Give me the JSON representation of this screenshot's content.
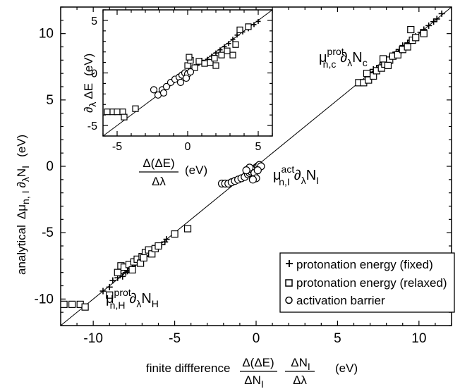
{
  "chart_data": [
    {
      "type": "scatter",
      "xlabel": {
        "prefix": "finite diffference",
        "frac1_num": "Δ(ΔE)",
        "frac1_den": "ΔN",
        "frac1_den_sub": "I",
        "frac2_num": "ΔN",
        "frac2_num_sub": "I",
        "frac2_den": "Δλ",
        "unit": "(eV)"
      },
      "ylabel": {
        "prefix": "analytical",
        "main": "Δμ",
        "sub": "n, I",
        "part2": "∂",
        "sub2": "λ",
        "part3": "N",
        "sub3": "I",
        "unit": "(eV)"
      },
      "xlim": [
        -12,
        12
      ],
      "ylim": [
        -12,
        12
      ],
      "xticks": [
        "-10",
        "-5",
        "0",
        "5",
        "10"
      ],
      "yticks": [
        "-10",
        "-5",
        "0",
        "5",
        "10"
      ],
      "annotations": {
        "top_right": {
          "mu": "μ",
          "sup": "prot",
          "sub": "n,c",
          "d": "∂",
          "dsub": "λ",
          "N": "N",
          "Nsub": "c"
        },
        "middle": {
          "mu": "μ",
          "sup": "act",
          "sub": "n,I",
          "d": "∂",
          "dsub": "λ",
          "N": "N",
          "Nsub": "I"
        },
        "bottom_left": {
          "mu": "μ",
          "sup": "prot",
          "sub": "n,H",
          "d": "∂",
          "dsub": "λ",
          "N": "N",
          "Nsub": "H"
        }
      },
      "legend": {
        "placement": "bottom-right",
        "items": [
          "protonation energy (fixed)",
          "protonation energy (relaxed)",
          "activation barrier"
        ]
      },
      "series": [
        {
          "name": "protonation energy (fixed)",
          "marker": "plus",
          "points": [
            [
              -9.4,
              -9.4
            ],
            [
              -9.0,
              -9.1
            ],
            [
              -8.8,
              -8.6
            ],
            [
              -8.5,
              -8.4
            ],
            [
              -8.2,
              -8.3
            ],
            [
              -8.0,
              -8.0
            ],
            [
              -7.8,
              -7.7
            ],
            [
              -7.6,
              -7.6
            ],
            [
              -7.4,
              -7.3
            ],
            [
              -7.2,
              -7.2
            ],
            [
              -7.0,
              -7.0
            ],
            [
              -6.8,
              -6.8
            ],
            [
              -6.6,
              -6.6
            ],
            [
              -6.4,
              -6.4
            ],
            [
              -6.2,
              -6.2
            ],
            [
              -6.0,
              -6.0
            ],
            [
              -5.8,
              -5.9
            ],
            [
              -5.6,
              -5.7
            ],
            [
              -5.5,
              -5.5
            ],
            [
              -8.3,
              -8.1
            ],
            [
              -7.9,
              -7.9
            ],
            [
              -6.9,
              -6.7
            ],
            [
              -6.5,
              -6.3
            ],
            [
              7.2,
              7.3
            ],
            [
              7.4,
              7.4
            ],
            [
              7.6,
              7.6
            ],
            [
              7.8,
              7.8
            ],
            [
              8.0,
              8.1
            ],
            [
              8.2,
              8.2
            ],
            [
              8.4,
              8.4
            ],
            [
              8.6,
              8.6
            ],
            [
              8.8,
              8.8
            ],
            [
              9.0,
              9.1
            ],
            [
              9.3,
              9.3
            ],
            [
              9.5,
              9.5
            ],
            [
              9.8,
              9.8
            ],
            [
              10.1,
              10.1
            ],
            [
              10.3,
              10.3
            ],
            [
              10.6,
              10.6
            ],
            [
              10.9,
              10.9
            ],
            [
              11.1,
              11.1
            ],
            [
              11.4,
              11.5
            ],
            [
              7.0,
              7.1
            ],
            [
              8.9,
              8.7
            ]
          ]
        },
        {
          "name": "protonation energy (relaxed)",
          "marker": "square",
          "points": [
            [
              -11.8,
              -10.4
            ],
            [
              -11.3,
              -10.4
            ],
            [
              -10.8,
              -10.4
            ],
            [
              -10.5,
              -10.6
            ],
            [
              -9.0,
              -9.7
            ],
            [
              -8.5,
              -8.0
            ],
            [
              -8.3,
              -7.5
            ],
            [
              -8.1,
              -7.6
            ],
            [
              -7.8,
              -7.4
            ],
            [
              -7.5,
              -7.2
            ],
            [
              -7.3,
              -7.0
            ],
            [
              -7.0,
              -6.8
            ],
            [
              -6.8,
              -6.5
            ],
            [
              -6.6,
              -6.3
            ],
            [
              -6.4,
              -6.6
            ],
            [
              -6.2,
              -6.2
            ],
            [
              -6.0,
              -6.0
            ],
            [
              -5.0,
              -5.1
            ],
            [
              -4.2,
              -4.7
            ],
            [
              -7.6,
              -7.8
            ],
            [
              -7.1,
              -7.3
            ],
            [
              -6.9,
              -6.9
            ],
            [
              6.3,
              6.3
            ],
            [
              6.6,
              6.3
            ],
            [
              6.9,
              6.5
            ],
            [
              7.2,
              6.8
            ],
            [
              7.4,
              7.2
            ],
            [
              7.7,
              7.4
            ],
            [
              7.9,
              7.7
            ],
            [
              8.2,
              8.0
            ],
            [
              8.4,
              8.3
            ],
            [
              8.7,
              8.4
            ],
            [
              9.0,
              8.8
            ],
            [
              9.3,
              9.0
            ],
            [
              9.6,
              9.5
            ],
            [
              9.5,
              10.3
            ],
            [
              9.8,
              9.7
            ],
            [
              10.3,
              10.0
            ],
            [
              6.8,
              7.0
            ],
            [
              7.8,
              8.1
            ],
            [
              8.1,
              7.6
            ]
          ]
        },
        {
          "name": "activation barrier",
          "marker": "circle",
          "points": [
            [
              -2.1,
              -1.3
            ],
            [
              -1.9,
              -1.3
            ],
            [
              -1.7,
              -1.3
            ],
            [
              -1.5,
              -1.2
            ],
            [
              -1.3,
              -1.1
            ],
            [
              -1.1,
              -1.0
            ],
            [
              -0.9,
              -0.9
            ],
            [
              -0.7,
              -0.8
            ],
            [
              -0.5,
              -0.6
            ],
            [
              -0.4,
              -0.5
            ],
            [
              -0.3,
              -0.4
            ],
            [
              -0.2,
              -0.3
            ],
            [
              -0.1,
              -0.2
            ],
            [
              0.0,
              -0.1
            ],
            [
              0.1,
              0.0
            ],
            [
              0.2,
              0.1
            ],
            [
              0.3,
              0.0
            ],
            [
              -0.3,
              -0.2
            ],
            [
              -0.1,
              -0.5
            ],
            [
              0.0,
              -0.9
            ],
            [
              -0.2,
              -1.0
            ],
            [
              0.1,
              -0.3
            ],
            [
              -0.4,
              -0.1
            ],
            [
              -0.6,
              -0.3
            ]
          ]
        }
      ]
    },
    {
      "type": "scatter",
      "xlabel": {
        "num": "Δ(ΔE)",
        "den": "Δλ",
        "unit": "(eV)"
      },
      "ylabel": {
        "d": "∂",
        "dsub": "λ",
        "main": "ΔE",
        "unit": "(eV)"
      },
      "xlim": [
        -6,
        6
      ],
      "ylim": [
        -6,
        6
      ],
      "xticks": [
        "-5",
        "0",
        "5"
      ],
      "yticks": [
        "-5",
        "0",
        "5"
      ],
      "series": [
        {
          "name": "protonation energy (fixed)",
          "marker": "plus",
          "points": [
            [
              0.2,
              0.4
            ],
            [
              0.5,
              0.6
            ],
            [
              0.8,
              0.9
            ],
            [
              1.1,
              1.0
            ],
            [
              1.4,
              1.3
            ],
            [
              1.7,
              1.6
            ],
            [
              2.0,
              1.9
            ],
            [
              2.3,
              2.2
            ],
            [
              2.6,
              2.5
            ],
            [
              2.9,
              2.8
            ],
            [
              3.2,
              3.2
            ],
            [
              3.5,
              3.6
            ],
            [
              3.9,
              3.9
            ],
            [
              4.3,
              4.2
            ],
            [
              4.7,
              4.6
            ],
            [
              5.0,
              4.9
            ],
            [
              -0.3,
              -0.3
            ],
            [
              1.0,
              1.2
            ],
            [
              -1.5,
              -1.4
            ],
            [
              -1.0,
              -0.8
            ]
          ]
        },
        {
          "name": "protonation energy (relaxed)",
          "marker": "square",
          "points": [
            [
              -5.7,
              -3.7
            ],
            [
              -5.3,
              -3.7
            ],
            [
              -5.0,
              -3.7
            ],
            [
              -4.6,
              -3.7
            ],
            [
              -4.5,
              -4.2
            ],
            [
              -3.7,
              -3.4
            ],
            [
              0.0,
              0.7
            ],
            [
              0.2,
              1.2
            ],
            [
              0.5,
              0.5
            ],
            [
              0.8,
              1.1
            ],
            [
              1.2,
              0.9
            ],
            [
              1.6,
              1.0
            ],
            [
              2.0,
              0.7
            ],
            [
              2.4,
              1.7
            ],
            [
              2.8,
              2.1
            ],
            [
              3.2,
              1.7
            ],
            [
              3.4,
              2.7
            ],
            [
              3.7,
              4.1
            ],
            [
              4.3,
              4.4
            ],
            [
              0.1,
              1.5
            ],
            [
              1.9,
              1.4
            ]
          ]
        },
        {
          "name": "activation barrier",
          "marker": "circle",
          "points": [
            [
              -2.4,
              -1.6
            ],
            [
              -2.1,
              -2.1
            ],
            [
              -1.8,
              -1.6
            ],
            [
              -1.5,
              -1.3
            ],
            [
              -1.2,
              -0.9
            ],
            [
              -0.9,
              -0.6
            ],
            [
              -0.6,
              -0.4
            ],
            [
              -0.4,
              -0.2
            ],
            [
              -0.2,
              0.0
            ],
            [
              0.0,
              -0.1
            ],
            [
              0.2,
              0.1
            ],
            [
              -1.7,
              -1.9
            ],
            [
              -0.1,
              -0.5
            ],
            [
              -0.5,
              -0.9
            ]
          ]
        }
      ]
    }
  ]
}
